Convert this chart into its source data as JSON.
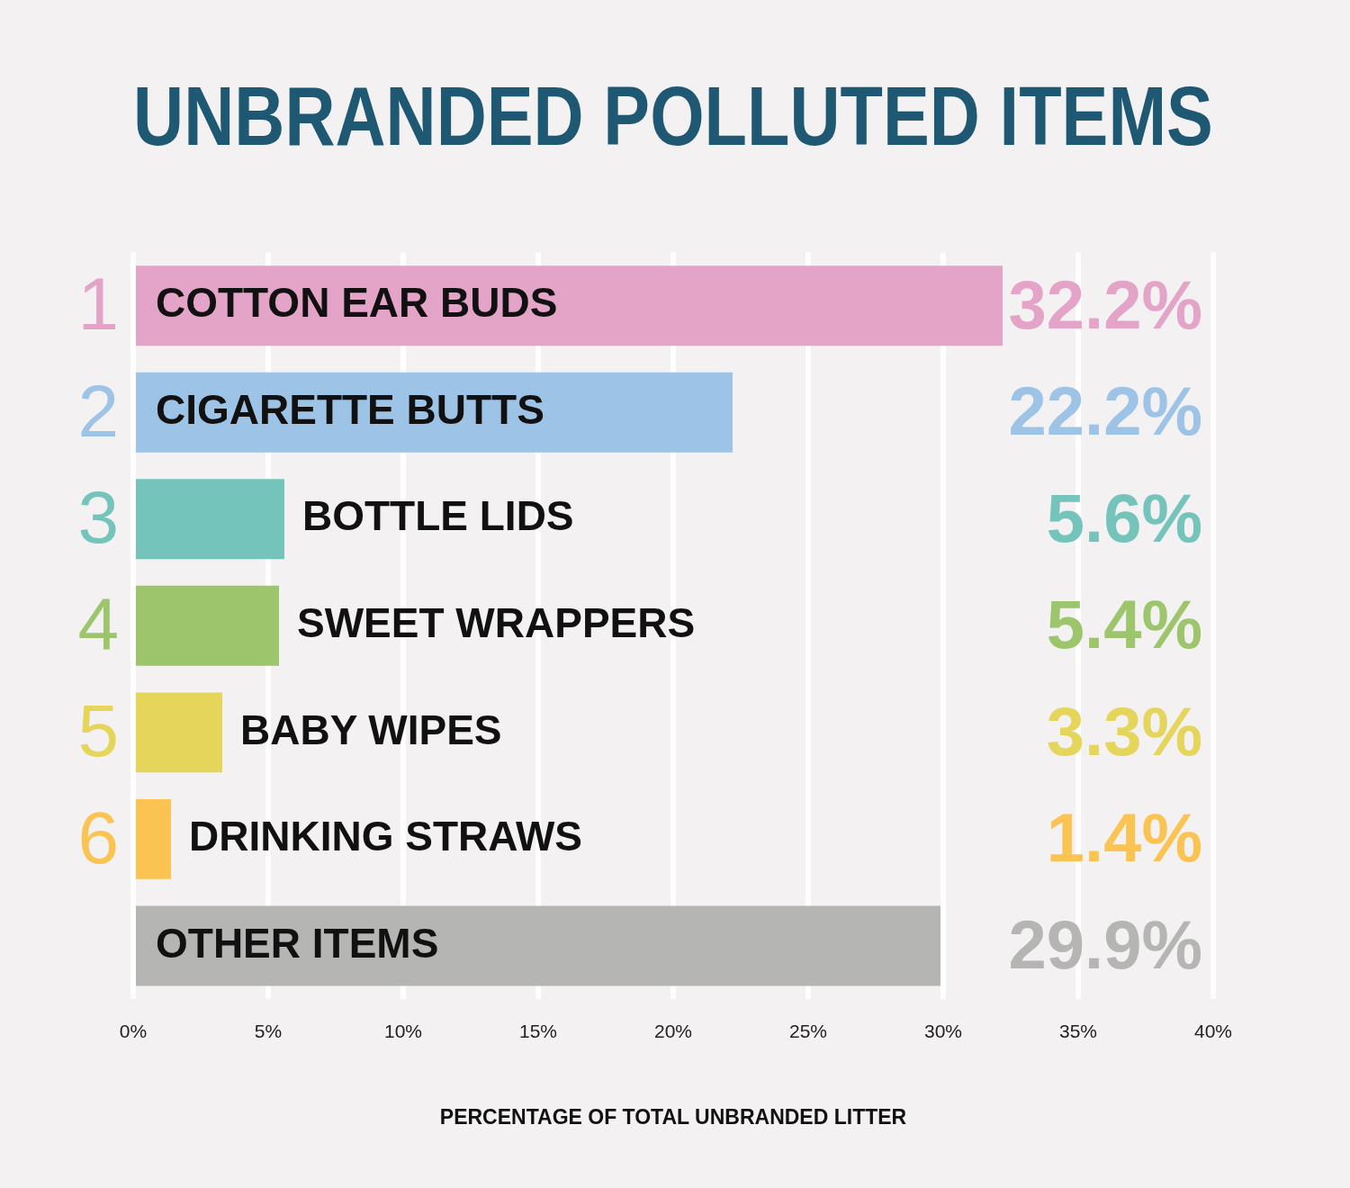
{
  "chart_data": {
    "type": "bar",
    "orientation": "horizontal",
    "title": "UNBRANDED POLLUTED ITEMS",
    "xlabel": "PERCENTAGE OF TOTAL UNBRANDED LITTER",
    "categories": [
      "COTTON EAR BUDS",
      "CIGARETTE BUTTS",
      "BOTTLE LIDS",
      "SWEET WRAPPERS",
      "BABY WIPES",
      "DRINKING STRAWS",
      "OTHER ITEMS"
    ],
    "values": [
      32.2,
      22.2,
      5.6,
      5.4,
      3.3,
      1.4,
      29.9
    ],
    "colors": [
      "#e4a4c8",
      "#9dc3e6",
      "#74c4bc",
      "#9dc56c",
      "#e5d55b",
      "#fbc352",
      "#b5b5b4"
    ],
    "value_labels": [
      "32.2%",
      "22.2%",
      "5.6%",
      "5.4%",
      "3.3%",
      "1.4%",
      "29.9%"
    ],
    "annotations": [
      "1",
      "2",
      "3",
      "4",
      "5",
      "6"
    ],
    "xlim": [
      0,
      40
    ],
    "xticks": [
      {
        "value": 0,
        "label": "0%"
      },
      {
        "value": 5,
        "label": "5%"
      },
      {
        "value": 10,
        "label": "10%"
      },
      {
        "value": 15,
        "label": "15%"
      },
      {
        "value": 20,
        "label": "20%"
      },
      {
        "value": 25,
        "label": "25%"
      },
      {
        "value": 30,
        "label": "30%"
      },
      {
        "value": 35,
        "label": "35%"
      },
      {
        "value": 40,
        "label": "40%"
      }
    ],
    "grid": "x",
    "legend": false
  }
}
